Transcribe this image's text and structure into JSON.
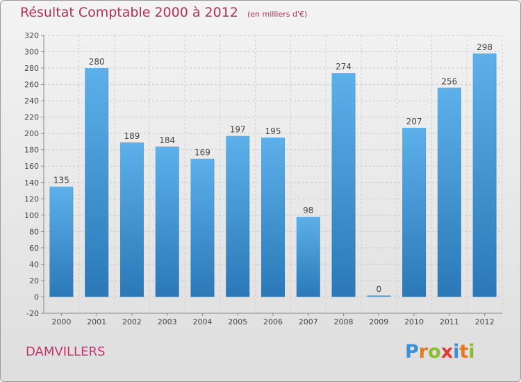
{
  "chart_data": {
    "type": "bar",
    "title": "Résultat Comptable 2000 à 2012",
    "subtitle": "(en milliers d'€)",
    "categories": [
      "2000",
      "2001",
      "2002",
      "2003",
      "2004",
      "2005",
      "2006",
      "2007",
      "2008",
      "2009",
      "2010",
      "2011",
      "2012"
    ],
    "values": [
      135,
      280,
      189,
      184,
      169,
      197,
      195,
      98,
      274,
      0,
      207,
      256,
      298
    ],
    "ylim": [
      -20,
      320
    ],
    "yticks": [
      -20,
      0,
      20,
      40,
      60,
      80,
      100,
      120,
      140,
      160,
      180,
      200,
      220,
      240,
      260,
      280,
      300,
      320
    ],
    "grid": true,
    "bar_color": "#3f95d8"
  },
  "place_name": "DAMVILLERS",
  "logo": {
    "text": "Proxiti",
    "letter_colors": [
      "#3a8fd6",
      "#e6791f",
      "#8dbb2c",
      "#e33b2e",
      "#3a8fd6",
      "#e6791f",
      "#8dbb2c"
    ]
  }
}
